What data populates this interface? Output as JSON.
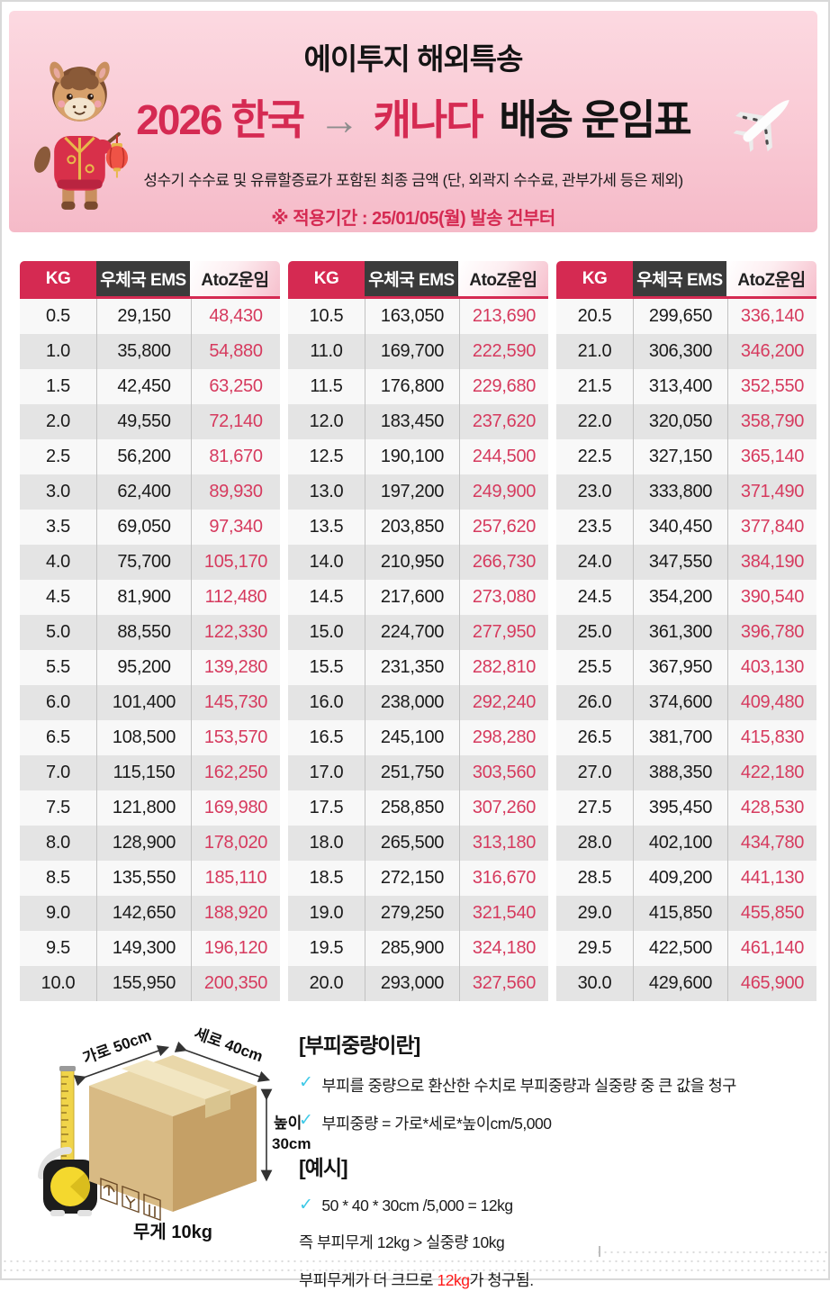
{
  "header": {
    "brand": "에이투지 해외특송",
    "title": {
      "year_origin": "2026 한국",
      "arrow": "→",
      "destination": "캐나다",
      "suffix": "배송 운임표"
    },
    "subtitle": "성수기 수수료 및 유류할증료가 포함된 최종 금액 (단, 외곽지 수수료, 관부가세 등은 제외)",
    "period_notice": "※ 적용기간 : 25/01/05(월) 발송 건부터",
    "mascot_icon": "new-year-horse-with-lantern",
    "plane_icon": "airplane"
  },
  "rates": {
    "columns": [
      "KG",
      "우체국 EMS",
      "AtoZ운임"
    ],
    "tables": [
      {
        "rows": [
          [
            "0.5",
            "29,150",
            "48,430"
          ],
          [
            "1.0",
            "35,800",
            "54,880"
          ],
          [
            "1.5",
            "42,450",
            "63,250"
          ],
          [
            "2.0",
            "49,550",
            "72,140"
          ],
          [
            "2.5",
            "56,200",
            "81,670"
          ],
          [
            "3.0",
            "62,400",
            "89,930"
          ],
          [
            "3.5",
            "69,050",
            "97,340"
          ],
          [
            "4.0",
            "75,700",
            "105,170"
          ],
          [
            "4.5",
            "81,900",
            "112,480"
          ],
          [
            "5.0",
            "88,550",
            "122,330"
          ],
          [
            "5.5",
            "95,200",
            "139,280"
          ],
          [
            "6.0",
            "101,400",
            "145,730"
          ],
          [
            "6.5",
            "108,500",
            "153,570"
          ],
          [
            "7.0",
            "115,150",
            "162,250"
          ],
          [
            "7.5",
            "121,800",
            "169,980"
          ],
          [
            "8.0",
            "128,900",
            "178,020"
          ],
          [
            "8.5",
            "135,550",
            "185,110"
          ],
          [
            "9.0",
            "142,650",
            "188,920"
          ],
          [
            "9.5",
            "149,300",
            "196,120"
          ],
          [
            "10.0",
            "155,950",
            "200,350"
          ]
        ]
      },
      {
        "rows": [
          [
            "10.5",
            "163,050",
            "213,690"
          ],
          [
            "11.0",
            "169,700",
            "222,590"
          ],
          [
            "11.5",
            "176,800",
            "229,680"
          ],
          [
            "12.0",
            "183,450",
            "237,620"
          ],
          [
            "12.5",
            "190,100",
            "244,500"
          ],
          [
            "13.0",
            "197,200",
            "249,900"
          ],
          [
            "13.5",
            "203,850",
            "257,620"
          ],
          [
            "14.0",
            "210,950",
            "266,730"
          ],
          [
            "14.5",
            "217,600",
            "273,080"
          ],
          [
            "15.0",
            "224,700",
            "277,950"
          ],
          [
            "15.5",
            "231,350",
            "282,810"
          ],
          [
            "16.0",
            "238,000",
            "292,240"
          ],
          [
            "16.5",
            "245,100",
            "298,280"
          ],
          [
            "17.0",
            "251,750",
            "303,560"
          ],
          [
            "17.5",
            "258,850",
            "307,260"
          ],
          [
            "18.0",
            "265,500",
            "313,180"
          ],
          [
            "18.5",
            "272,150",
            "316,670"
          ],
          [
            "19.0",
            "279,250",
            "321,540"
          ],
          [
            "19.5",
            "285,900",
            "324,180"
          ],
          [
            "20.0",
            "293,000",
            "327,560"
          ]
        ]
      },
      {
        "rows": [
          [
            "20.5",
            "299,650",
            "336,140"
          ],
          [
            "21.0",
            "306,300",
            "346,200"
          ],
          [
            "21.5",
            "313,400",
            "352,550"
          ],
          [
            "22.0",
            "320,050",
            "358,790"
          ],
          [
            "22.5",
            "327,150",
            "365,140"
          ],
          [
            "23.0",
            "333,800",
            "371,490"
          ],
          [
            "23.5",
            "340,450",
            "377,840"
          ],
          [
            "24.0",
            "347,550",
            "384,190"
          ],
          [
            "24.5",
            "354,200",
            "390,540"
          ],
          [
            "25.0",
            "361,300",
            "396,780"
          ],
          [
            "25.5",
            "367,950",
            "403,130"
          ],
          [
            "26.0",
            "374,600",
            "409,480"
          ],
          [
            "26.5",
            "381,700",
            "415,830"
          ],
          [
            "27.0",
            "388,350",
            "422,180"
          ],
          [
            "27.5",
            "395,450",
            "428,530"
          ],
          [
            "28.0",
            "402,100",
            "434,780"
          ],
          [
            "28.5",
            "409,200",
            "441,130"
          ],
          [
            "29.0",
            "415,850",
            "455,850"
          ],
          [
            "29.5",
            "422,500",
            "461,140"
          ],
          [
            "30.0",
            "429,600",
            "465,900"
          ]
        ]
      }
    ]
  },
  "volumetric": {
    "section1_title": "[부피중량이란]",
    "section1_items": [
      "부피를 중량으로 환산한 수치로 부피중량과 실중량 중 큰 값을 청구",
      "부피중량 = 가로*세로*높이cm/5,000"
    ],
    "section2_title": "[예시]",
    "section2_items": [
      "50 * 40 * 30cm /5,000 = 12kg"
    ],
    "note_line1": "즉 부피무게 12kg > 실중량 10kg",
    "note_line2_prefix": "부피무게가 더 크므로 ",
    "note_line2_highlight": "12kg",
    "note_line2_suffix": "가 청구됨."
  },
  "box_diagram": {
    "width_label": "가로 50cm",
    "depth_label": "세로 40cm",
    "height_label_line1": "높이",
    "height_label_line2": "30cm",
    "weight_label": "무게 10kg"
  },
  "icons": {
    "check": "✓"
  },
  "colors": {
    "accent_crimson": "#d52a52",
    "atoz_value_red": "#d63a5e",
    "ems_header_dark": "#3b3b3b",
    "check_cyan": "#3ec9e7",
    "highlight_red": "#ff1a1a",
    "banner_pink_top": "#fcd9e1",
    "banner_pink_bottom": "#f5bac8"
  }
}
